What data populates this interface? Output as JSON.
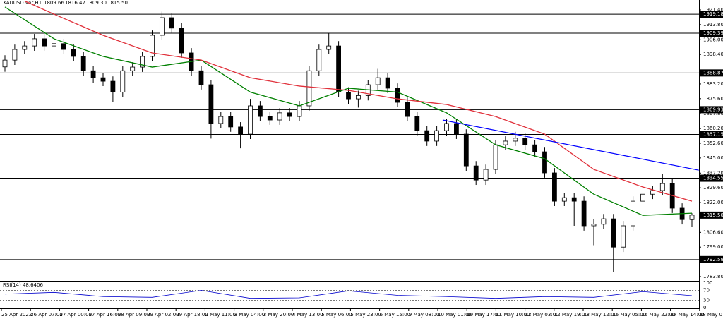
{
  "chart_data": {
    "type": "candlestick",
    "symbol": "XAUUSD.var,H1",
    "quote": [
      "1809.66",
      "1816.47",
      "1809.30",
      "1815.50"
    ],
    "ylim": [
      1781.6,
      1926.5
    ],
    "yticks": [
      {
        "value": 1921.4,
        "label": "1921.40"
      },
      {
        "value": 1913.8,
        "label": "1913.80"
      },
      {
        "value": 1906,
        "label": "1906.00"
      },
      {
        "value": 1898.4,
        "label": "1898.40"
      },
      {
        "value": 1883.2,
        "label": "1883.20"
      },
      {
        "value": 1875.6,
        "label": "1875.60"
      },
      {
        "value": 1867.8,
        "label": "1867.80"
      },
      {
        "value": 1860.2,
        "label": "1860.20"
      },
      {
        "value": 1852.6,
        "label": "1852.60"
      },
      {
        "value": 1845,
        "label": "1845.00"
      },
      {
        "value": 1837.2,
        "label": "1837.20"
      },
      {
        "value": 1829.6,
        "label": "1829.60"
      },
      {
        "value": 1822,
        "label": "1822.00"
      },
      {
        "value": 1806.6,
        "label": "1806.60"
      },
      {
        "value": 1799,
        "label": "1799.00"
      },
      {
        "value": 1783.8,
        "label": "1783.80"
      }
    ],
    "levels": [
      1919.18,
      1909.39,
      1888.87,
      1869.93,
      1857.15,
      1834.55,
      1792.59
    ],
    "price_label": {
      "value": 1815.5,
      "label": "1815.50"
    },
    "categories": [
      "25 Apr 2022",
      "26 Apr 07:00",
      "27 Apr 00:00",
      "27 Apr 16:00",
      "28 Apr 09:00",
      "29 Apr 02:00",
      "29 Apr 18:00",
      "2 May 11:00",
      "3 May 04:00",
      "3 May 20:00",
      "4 May 13:00",
      "5 May 06:00",
      "5 May 23:00",
      "6 May 15:00",
      "9 May 08:00",
      "10 May 01:00",
      "10 May 17:00",
      "11 May 10:00",
      "12 May 03:00",
      "12 May 19:00",
      "13 May 12:00",
      "16 May 05:00",
      "16 May 22:00",
      "17 May 14:00",
      "18 May 07:00"
    ],
    "open": [
      1892,
      1895.5,
      1901,
      1902.8,
      1906.5,
      1902.8,
      1904,
      1901,
      1897.4,
      1890,
      1886.4,
      1884.6,
      1879,
      1890,
      1891.9,
      1897.4,
      1908.3,
      1917.4,
      1912,
      1899.2,
      1890,
      1882.8,
      1862.8,
      1866.4,
      1861,
      1857.3,
      1871.9,
      1866.4,
      1864.6,
      1868.3,
      1866.4,
      1871.9,
      1890,
      1901,
      1902.8,
      1879,
      1875.5,
      1877.2,
      1882.8,
      1886.4,
      1881,
      1873.7,
      1866.4,
      1859.1,
      1853.7,
      1859.1,
      1862.8,
      1857.3,
      1840.9,
      1833.6,
      1839.1,
      1851.8,
      1853.7,
      1855.2,
      1851.8,
      1848.2,
      1837.3,
      1822.7,
      1824.5,
      1822.7,
      1810,
      1810.8,
      1813.6,
      1799,
      1810,
      1822.7,
      1826.3,
      1828.2,
      1831.8,
      1819.1,
      1813.2
    ],
    "high": [
      1898,
      1903.5,
      1905.3,
      1909,
      1909,
      1906.5,
      1906.5,
      1903.5,
      1899.9,
      1892.5,
      1888.9,
      1887.1,
      1892.5,
      1894.4,
      1899.9,
      1910.8,
      1920.5,
      1919.9,
      1914.5,
      1901.7,
      1892.5,
      1885.3,
      1868.9,
      1868.9,
      1863.5,
      1875.5,
      1874.4,
      1868.9,
      1870.8,
      1870.8,
      1874.4,
      1892.5,
      1903.5,
      1909.5,
      1905.3,
      1881.5,
      1879.7,
      1885.3,
      1891,
      1888.9,
      1883.5,
      1876.2,
      1868.9,
      1861.6,
      1861.6,
      1865.3,
      1865.3,
      1859.8,
      1843.4,
      1841.6,
      1854.3,
      1856.2,
      1858.5,
      1857.7,
      1854.3,
      1850.7,
      1839.8,
      1827,
      1827,
      1825.2,
      1813.3,
      1816.1,
      1816.1,
      1812.5,
      1825.2,
      1828.8,
      1830.7,
      1836.8,
      1834.3,
      1821.6,
      1816.47
    ],
    "low": [
      1889.5,
      1893,
      1898.5,
      1900.3,
      1900.3,
      1900.3,
      1898.5,
      1894.9,
      1887.5,
      1883.9,
      1882.1,
      1874,
      1876.5,
      1887.5,
      1889.4,
      1894.9,
      1905.8,
      1909.5,
      1896.7,
      1887.5,
      1880.3,
      1855,
      1860.3,
      1858.5,
      1850,
      1854.8,
      1863.9,
      1862.1,
      1862.1,
      1863.9,
      1863.9,
      1869.4,
      1887.5,
      1898.5,
      1876.5,
      1873,
      1871,
      1874.7,
      1880.3,
      1878.5,
      1871.2,
      1863.9,
      1856.6,
      1851.2,
      1851.2,
      1856.6,
      1854.8,
      1838.4,
      1831.1,
      1831.1,
      1836.6,
      1849.3,
      1851.2,
      1849.3,
      1845.7,
      1834.8,
      1820.2,
      1820.2,
      1810,
      1807.5,
      1800,
      1808.3,
      1786,
      1796.5,
      1807.5,
      1820.2,
      1823.8,
      1825.7,
      1816.6,
      1810.7,
      1809.3
    ],
    "close": [
      1895.5,
      1901,
      1902.8,
      1906.5,
      1902.8,
      1904,
      1901,
      1897.4,
      1890,
      1886.4,
      1884.6,
      1879,
      1890,
      1891.9,
      1897.4,
      1908.3,
      1917.4,
      1912,
      1899.2,
      1890,
      1882.8,
      1862.8,
      1866.4,
      1861,
      1857.3,
      1871.9,
      1866.4,
      1864.6,
      1868.3,
      1866.4,
      1871.9,
      1890,
      1901,
      1902.8,
      1879,
      1875.5,
      1877.2,
      1882.8,
      1886.4,
      1881,
      1873.7,
      1866.4,
      1859.1,
      1853.7,
      1859.1,
      1862.8,
      1857.3,
      1840.9,
      1833.6,
      1839.1,
      1851.8,
      1853.7,
      1855.2,
      1851.8,
      1848.2,
      1837.3,
      1822.7,
      1824.5,
      1822.7,
      1810,
      1810.8,
      1813.6,
      1799,
      1810,
      1822.7,
      1826.3,
      1828.2,
      1831.8,
      1819.1,
      1813.2,
      1815.5
    ],
    "moving_averages": [
      {
        "color": "#008000",
        "x": [
          0,
          5,
          10,
          15,
          20,
          25,
          30,
          35,
          40,
          45,
          50,
          55,
          60,
          65,
          70
        ],
        "values": [
          1922.9,
          1906.5,
          1897.4,
          1891.9,
          1895.5,
          1879,
          1871.9,
          1881,
          1879,
          1868.3,
          1851.8,
          1844.6,
          1826.3,
          1815.4,
          1816.5
        ]
      },
      {
        "color": "#e0303a",
        "x": [
          2,
          5,
          10,
          15,
          20,
          25,
          30,
          35,
          40,
          45,
          50,
          55,
          60,
          65,
          70
        ],
        "values": [
          1926,
          1919.2,
          1908.3,
          1899.2,
          1895.5,
          1886.4,
          1882.1,
          1879.9,
          1875.5,
          1872.6,
          1866.4,
          1857.3,
          1839.1,
          1830,
          1822.7
        ]
      }
    ],
    "trendline": {
      "color": "#0000ff",
      "x": [
        44.6,
        70.7
      ],
      "values": [
        1864.6,
        1838.7
      ]
    },
    "rsi": {
      "label": "RSI(14) 48.6406",
      "color": "#0000cd",
      "ylim": [
        0,
        100
      ],
      "yticks": [
        100,
        70,
        30,
        0
      ],
      "x": [
        0,
        5,
        10,
        15,
        20,
        25,
        30,
        35,
        40,
        45,
        50,
        55,
        60,
        65,
        70
      ],
      "values": [
        55,
        62,
        45,
        42,
        70,
        38,
        40,
        68,
        50,
        45,
        38,
        45,
        42,
        65,
        48.6
      ]
    }
  }
}
